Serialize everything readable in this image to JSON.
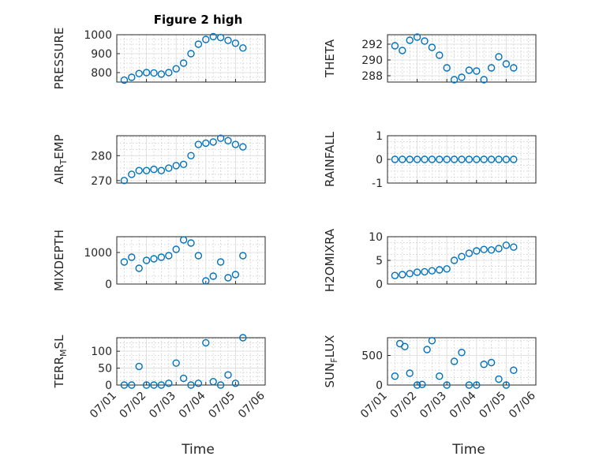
{
  "figure": {
    "title": "Figure 2 high",
    "xlabel": "Time"
  },
  "chart_data": [
    {
      "type": "scatter",
      "title": "Figure 2 high",
      "xlabel": "",
      "ylabel": "PRESSURE",
      "ylim": [
        750,
        1000
      ],
      "yticks": [
        800,
        900,
        1000
      ],
      "xlim": [
        "07/01",
        "07/06"
      ],
      "xtick_labels_shown": false,
      "marker_color": "#0072BD",
      "grid": true,
      "x": [
        "07/01 06:00",
        "07/01 12:00",
        "07/01 18:00",
        "07/02 00:00",
        "07/02 06:00",
        "07/02 12:00",
        "07/02 18:00",
        "07/03 00:00",
        "07/03 06:00",
        "07/03 12:00",
        "07/03 18:00",
        "07/04 00:00",
        "07/04 06:00",
        "07/04 12:00",
        "07/04 18:00",
        "07/05 00:00",
        "07/05 06:00"
      ],
      "y": [
        760,
        775,
        795,
        800,
        798,
        792,
        800,
        820,
        850,
        900,
        950,
        975,
        990,
        985,
        970,
        955,
        930
      ]
    },
    {
      "type": "scatter",
      "ylabel": "THETA",
      "ylim": [
        287.2,
        293.2
      ],
      "yticks": [
        288,
        290,
        292
      ],
      "xlim": [
        "07/01",
        "07/06"
      ],
      "xtick_labels_shown": false,
      "marker_color": "#0072BD",
      "grid": true,
      "x": [
        "07/01 06:00",
        "07/01 12:00",
        "07/01 18:00",
        "07/02 00:00",
        "07/02 06:00",
        "07/02 12:00",
        "07/02 18:00",
        "07/03 00:00",
        "07/03 06:00",
        "07/03 12:00",
        "07/03 18:00",
        "07/04 00:00",
        "07/04 06:00",
        "07/04 12:00",
        "07/04 18:00",
        "07/05 00:00",
        "07/05 06:00"
      ],
      "y": [
        291.8,
        291.2,
        292.5,
        292.9,
        292.4,
        291.6,
        290.6,
        289.0,
        287.5,
        287.8,
        288.7,
        288.6,
        287.5,
        289.0,
        290.4,
        289.5,
        289.0
      ]
    },
    {
      "type": "scatter",
      "ylabel": "AIR_TEMP",
      "ylabel_parts": [
        "AIR",
        "T",
        "EMP"
      ],
      "ylim": [
        269,
        288
      ],
      "yticks": [
        270,
        280
      ],
      "xlim": [
        "07/01",
        "07/06"
      ],
      "xtick_labels_shown": false,
      "marker_color": "#0072BD",
      "grid": true,
      "x": [
        "07/01 06:00",
        "07/01 12:00",
        "07/01 18:00",
        "07/02 00:00",
        "07/02 06:00",
        "07/02 12:00",
        "07/02 18:00",
        "07/03 00:00",
        "07/03 06:00",
        "07/03 12:00",
        "07/03 18:00",
        "07/04 00:00",
        "07/04 06:00",
        "07/04 12:00",
        "07/04 18:00",
        "07/05 00:00",
        "07/05 06:00"
      ],
      "y": [
        270,
        272.5,
        274,
        274,
        274.5,
        274,
        275,
        276,
        276.5,
        280,
        284.5,
        285,
        285.5,
        287,
        286,
        284.5,
        283.5
      ]
    },
    {
      "type": "scatter",
      "ylabel": "RAINFALL",
      "ylim": [
        -1,
        1
      ],
      "yticks": [
        -1,
        0,
        1
      ],
      "xlim": [
        "07/01",
        "07/06"
      ],
      "xtick_labels_shown": false,
      "marker_color": "#0072BD",
      "grid": true,
      "x": [
        "07/01 06:00",
        "07/01 12:00",
        "07/01 18:00",
        "07/02 00:00",
        "07/02 06:00",
        "07/02 12:00",
        "07/02 18:00",
        "07/03 00:00",
        "07/03 06:00",
        "07/03 12:00",
        "07/03 18:00",
        "07/04 00:00",
        "07/04 06:00",
        "07/04 12:00",
        "07/04 18:00",
        "07/05 00:00",
        "07/05 06:00"
      ],
      "y": [
        0,
        0,
        0,
        0,
        0,
        0,
        0,
        0,
        0,
        0,
        0,
        0,
        0,
        0,
        0,
        0,
        0
      ]
    },
    {
      "type": "scatter",
      "ylabel": "MIXDEPTH",
      "ylim": [
        0,
        1500
      ],
      "yticks": [
        0,
        1000
      ],
      "xlim": [
        "07/01",
        "07/06"
      ],
      "xtick_labels_shown": false,
      "marker_color": "#0072BD",
      "grid": true,
      "x": [
        "07/01 06:00",
        "07/01 12:00",
        "07/01 18:00",
        "07/02 00:00",
        "07/02 06:00",
        "07/02 12:00",
        "07/02 18:00",
        "07/03 00:00",
        "07/03 06:00",
        "07/03 12:00",
        "07/03 18:00",
        "07/04 00:00",
        "07/04 06:00",
        "07/04 12:00",
        "07/04 18:00",
        "07/05 00:00",
        "07/05 06:00"
      ],
      "y": [
        700,
        850,
        500,
        750,
        800,
        850,
        900,
        1100,
        1400,
        1300,
        900,
        100,
        250,
        700,
        200,
        300,
        900
      ]
    },
    {
      "type": "scatter",
      "ylabel": "H2OMIXRA",
      "ylim": [
        0,
        10
      ],
      "yticks": [
        0,
        5,
        10
      ],
      "xlim": [
        "07/01",
        "07/06"
      ],
      "xtick_labels_shown": false,
      "marker_color": "#0072BD",
      "grid": true,
      "x": [
        "07/01 06:00",
        "07/01 12:00",
        "07/01 18:00",
        "07/02 00:00",
        "07/02 06:00",
        "07/02 12:00",
        "07/02 18:00",
        "07/03 00:00",
        "07/03 06:00",
        "07/03 12:00",
        "07/03 18:00",
        "07/04 00:00",
        "07/04 06:00",
        "07/04 12:00",
        "07/04 18:00",
        "07/05 00:00",
        "07/05 06:00"
      ],
      "y": [
        1.8,
        2.0,
        2.2,
        2.5,
        2.6,
        2.8,
        3.0,
        3.2,
        5.0,
        5.8,
        6.5,
        7.0,
        7.3,
        7.2,
        7.5,
        8.2,
        7.8
      ]
    },
    {
      "type": "scatter",
      "ylabel": "TERR_MSL",
      "ylabel_parts": [
        "TERR",
        "M",
        "SL"
      ],
      "ylim": [
        0,
        140
      ],
      "yticks": [
        0,
        50,
        100
      ],
      "xlim": [
        "07/01",
        "07/06"
      ],
      "xtick_labels": [
        "07/01",
        "07/02",
        "07/03",
        "07/04",
        "07/05",
        "07/06"
      ],
      "xlabel": "Time",
      "marker_color": "#0072BD",
      "grid": true,
      "x": [
        "07/01 06:00",
        "07/01 12:00",
        "07/01 18:00",
        "07/02 00:00",
        "07/02 06:00",
        "07/02 12:00",
        "07/02 18:00",
        "07/03 00:00",
        "07/03 06:00",
        "07/03 12:00",
        "07/03 18:00",
        "07/04 00:00",
        "07/04 06:00",
        "07/04 12:00",
        "07/04 18:00",
        "07/05 00:00",
        "07/05 06:00"
      ],
      "y": [
        0,
        0,
        55,
        0,
        0,
        0,
        5,
        65,
        20,
        0,
        5,
        125,
        10,
        0,
        30,
        5,
        140
      ]
    },
    {
      "type": "scatter",
      "ylabel": "SUN_FLUX",
      "ylabel_parts": [
        "SUN",
        "F",
        "LUX"
      ],
      "ylim": [
        0,
        800
      ],
      "yticks": [
        0,
        500
      ],
      "xlim": [
        "07/01",
        "07/06"
      ],
      "xtick_labels": [
        "07/01",
        "07/02",
        "07/03",
        "07/04",
        "07/05",
        "07/06"
      ],
      "xlabel": "Time",
      "marker_color": "#0072BD",
      "grid": true,
      "x": [
        "07/01 06:00",
        "07/01 10:00",
        "07/01 14:00",
        "07/01 18:00",
        "07/02 00:00",
        "07/02 04:00",
        "07/02 08:00",
        "07/02 12:00",
        "07/02 18:00",
        "07/03 00:00",
        "07/03 06:00",
        "07/03 12:00",
        "07/03 18:00",
        "07/04 00:00",
        "07/04 06:00",
        "07/04 12:00",
        "07/04 18:00",
        "07/05 00:00",
        "07/05 06:00"
      ],
      "y": [
        150,
        700,
        650,
        200,
        0,
        10,
        600,
        750,
        150,
        0,
        400,
        550,
        0,
        0,
        350,
        380,
        100,
        0,
        250
      ]
    }
  ]
}
